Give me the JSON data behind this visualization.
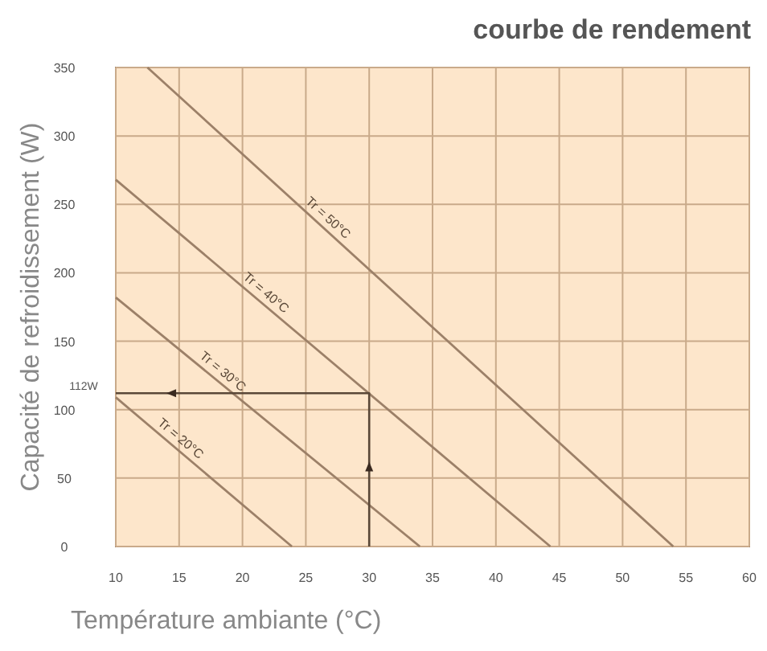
{
  "chart_data": {
    "type": "line",
    "title": "courbe de rendement",
    "xlabel": "Température ambiante (°C)",
    "ylabel": "Capacité de refroidissement (W)",
    "xlim": [
      10,
      60
    ],
    "ylim": [
      0,
      350
    ],
    "xticks": [
      10,
      15,
      20,
      25,
      30,
      35,
      40,
      45,
      50,
      55,
      60
    ],
    "yticks": [
      0,
      50,
      100,
      150,
      200,
      250,
      300,
      350
    ],
    "grid": true,
    "marker": "none",
    "line_style": "solid",
    "series": [
      {
        "name": "Tr = 50°C",
        "color": "#9c8068",
        "x": [
          12.5,
          54
        ],
        "values": [
          350,
          0
        ]
      },
      {
        "name": "Tr = 40°C",
        "color": "#9c8068",
        "x": [
          10,
          44.3
        ],
        "values": [
          268,
          0
        ]
      },
      {
        "name": "Tr = 30°C",
        "color": "#9c8068",
        "x": [
          10,
          34
        ],
        "values": [
          182,
          0
        ]
      },
      {
        "name": "Tr = 20°C",
        "color": "#9c8068",
        "x": [
          10,
          23.9
        ],
        "values": [
          109,
          0
        ]
      },
      {
        "color": "#5a4838",
        "x": [
          10,
          30,
          30
        ],
        "values": [
          112,
          112,
          0
        ]
      }
    ],
    "annotations": [
      {
        "text": "112W",
        "x": 10,
        "y": 112
      }
    ]
  }
}
